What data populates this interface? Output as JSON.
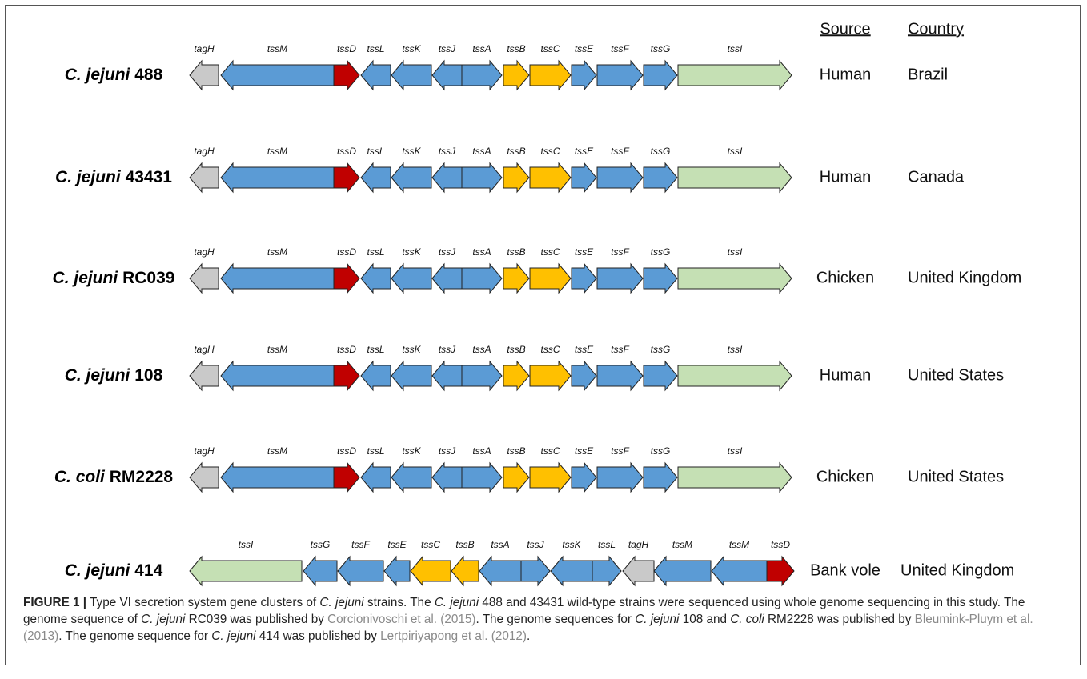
{
  "headers": {
    "source": "Source",
    "country": "Country"
  },
  "rows": [
    {
      "species": "C. jejuni",
      "id": "488",
      "genes": [
        "tagH",
        "tssM",
        "tssD",
        "tssL",
        "tssK",
        "tssJ",
        "tssA",
        "tssB",
        "tssC",
        "tssE",
        "tssF",
        "tssG",
        "tssI"
      ],
      "source": "Human",
      "country": "Brazil"
    },
    {
      "species": "C. jejuni",
      "id": "43431",
      "genes": [
        "tagH",
        "tssM",
        "tssD",
        "tssL",
        "tssK",
        "tssJ",
        "tssA",
        "tssB",
        "tssC",
        "tssE",
        "tssF",
        "tssG",
        "tssI"
      ],
      "source": "Human",
      "country": "Canada"
    },
    {
      "species": "C. jejuni",
      "id": "RC039",
      "genes": [
        "tagH",
        "tssM",
        "tssD",
        "tssL",
        "tssK",
        "tssJ",
        "tssA",
        "tssB",
        "tssC",
        "tssE",
        "tssF",
        "tssG",
        "tssI"
      ],
      "source": "Chicken",
      "country": "United Kingdom"
    },
    {
      "species": "C. jejuni",
      "id": "108",
      "genes": [
        "tagH",
        "tssM",
        "tssD",
        "tssL",
        "tssK",
        "tssJ",
        "tssA",
        "tssB",
        "tssC",
        "tssE",
        "tssF",
        "tssG",
        "tssI"
      ],
      "source": "Human",
      "country": "United States"
    },
    {
      "species": "C. coli",
      "id": "RM2228",
      "genes": [
        "tagH",
        "tssM",
        "tssD",
        "tssL",
        "tssK",
        "tssJ",
        "tssA",
        "tssB",
        "tssC",
        "tssE",
        "tssF",
        "tssG",
        "tssI"
      ],
      "source": "Chicken",
      "country": "United States"
    },
    {
      "species": "C. jejuni",
      "id": "414",
      "genes": [
        "tssI",
        "tssG",
        "tssF",
        "tssE",
        "tssC",
        "tssB",
        "tssA",
        "tssJ",
        "tssK",
        "tssL",
        "tagH",
        "tssM",
        "tssM",
        "tssD"
      ],
      "source": "Bank vole",
      "country": "United Kingdom"
    }
  ],
  "caption": {
    "label": "FIGURE 1 |",
    "parts": [
      " Type VI secretion system gene clusters of ",
      "C. jejuni",
      " strains. The ",
      "C. jejuni",
      " 488 and 43431 wild-type strains were sequenced using whole genome sequencing in this study. The genome sequence of ",
      "C. jejuni",
      " RC039 was published by ",
      "Corcionivoschi et al. (2015)",
      ". The genome sequences for ",
      "C. jejuni",
      " 108 and ",
      "C. coli",
      " RM2228 was published by ",
      "Bleumink-Pluym et al. (2013)",
      ". The genome sequence for ",
      "C. jejuni",
      " 414 was published by ",
      "Lertpiriyapong et al. (2012)",
      "."
    ]
  }
}
